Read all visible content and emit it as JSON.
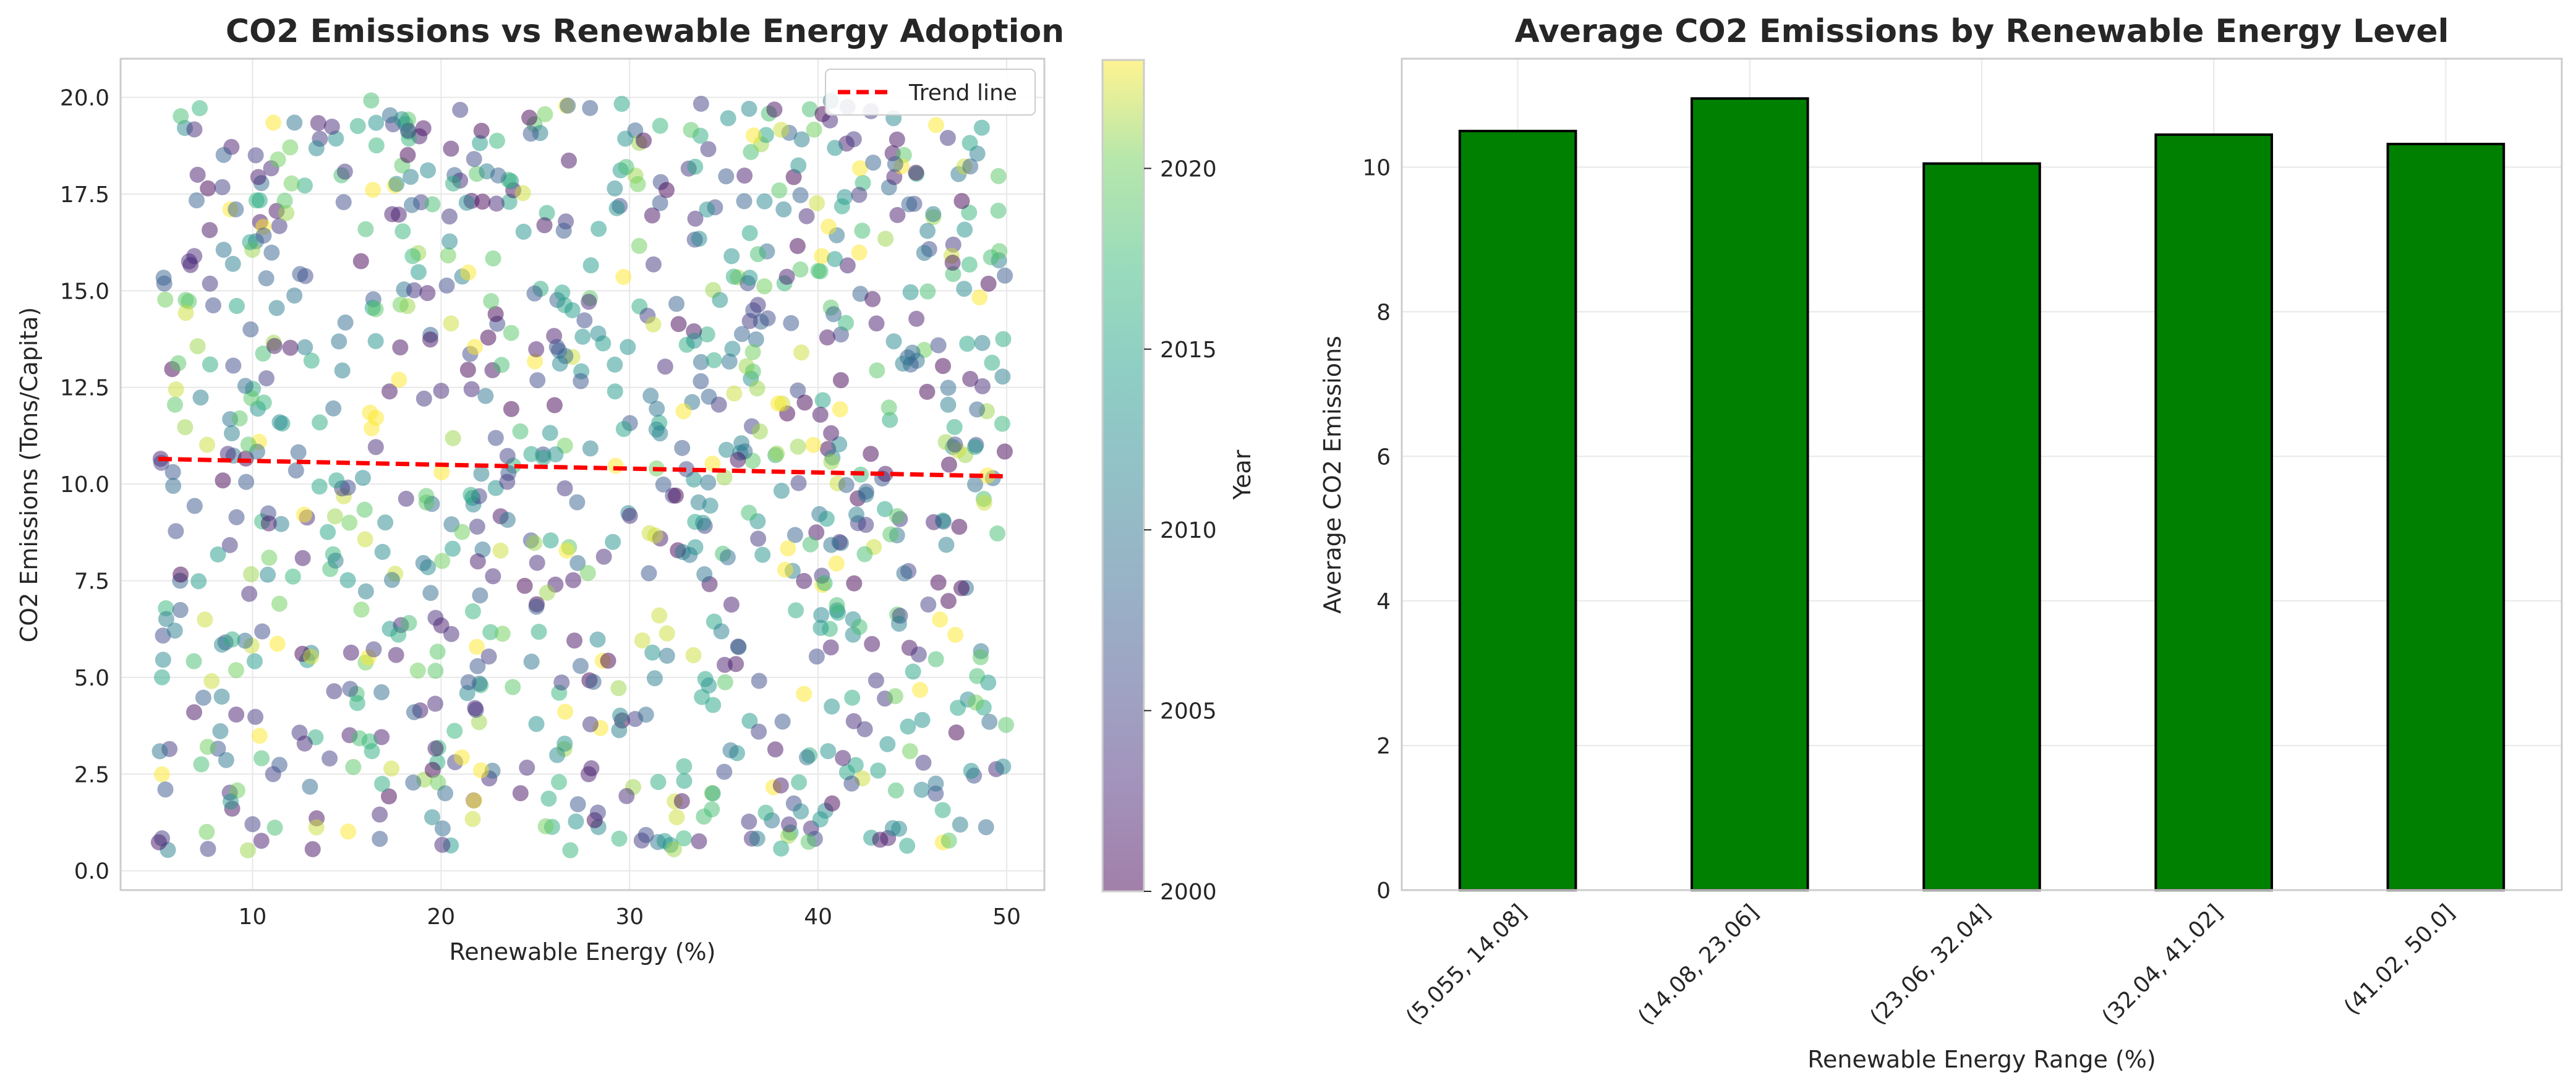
{
  "chart_data": [
    {
      "type": "scatter",
      "title": "CO2 Emissions vs Renewable Energy Adoption",
      "xlabel": "Renewable Energy (%)",
      "ylabel": "CO2 Emissions (Tons/Capita)",
      "xlim": [
        3,
        52
      ],
      "ylim": [
        -0.5,
        21
      ],
      "xticks": [
        10,
        20,
        30,
        40,
        50
      ],
      "yticks": [
        0.0,
        2.5,
        5.0,
        7.5,
        10.0,
        12.5,
        15.0,
        17.5,
        20.0
      ],
      "grid": true,
      "point_count": 1000,
      "x_range": [
        5,
        50
      ],
      "y_range": [
        0.5,
        20
      ],
      "color_by": "Year",
      "colormap": "viridis",
      "marker_alpha": 0.5,
      "trend_line": {
        "label": "Trend line",
        "color": "#ff0000",
        "style": "dashed",
        "x": [
          5,
          50
        ],
        "y": [
          10.65,
          10.2
        ]
      },
      "legend": {
        "position": "top-right",
        "entries": [
          "Trend line"
        ]
      },
      "colorbar": {
        "label": "Year",
        "min": 2000,
        "max": 2023,
        "ticks": [
          2000,
          2005,
          2010,
          2015,
          2020
        ]
      }
    },
    {
      "type": "bar",
      "title": "Average CO2 Emissions by Renewable Energy Level",
      "xlabel": "Renewable Energy Range (%)",
      "ylabel": "Average CO2 Emissions",
      "categories": [
        "(5.055, 14.08]",
        "(14.08, 23.06]",
        "(23.06, 32.04]",
        "(32.04, 41.02]",
        "(41.02, 50.0]"
      ],
      "values": [
        10.5,
        10.95,
        10.05,
        10.45,
        10.32
      ],
      "ylim": [
        0,
        11.5
      ],
      "yticks": [
        0,
        2,
        4,
        6,
        8,
        10
      ],
      "grid": true,
      "bar_color": "#008000",
      "edge_color": "#000000"
    }
  ]
}
